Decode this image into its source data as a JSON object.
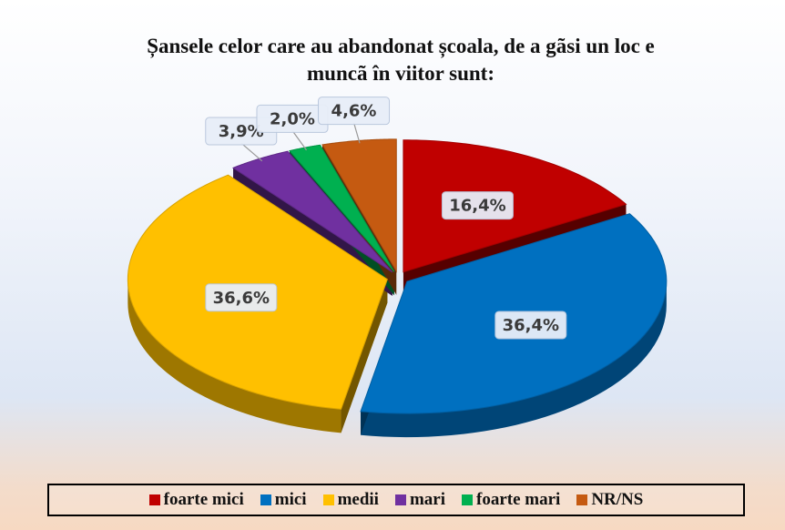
{
  "chart_data": {
    "type": "pie",
    "title": "Șansele celor care au abandonat școala, de a gãsi un loc e muncã în viitor sunt:",
    "categories": [
      "foarte mici",
      "mici",
      "medii",
      "mari",
      "foarte mari",
      "NR/NS"
    ],
    "values": [
      16.4,
      36.4,
      36.6,
      3.9,
      2.0,
      4.6
    ],
    "value_labels": [
      "16,4%",
      "36,4%",
      "36,6%",
      "3,9%",
      "2,0%",
      "4,6%"
    ],
    "colors": [
      "#c00000",
      "#0070c0",
      "#ffc000",
      "#7030a0",
      "#00b050",
      "#c55a11"
    ],
    "legend": "bottom"
  }
}
